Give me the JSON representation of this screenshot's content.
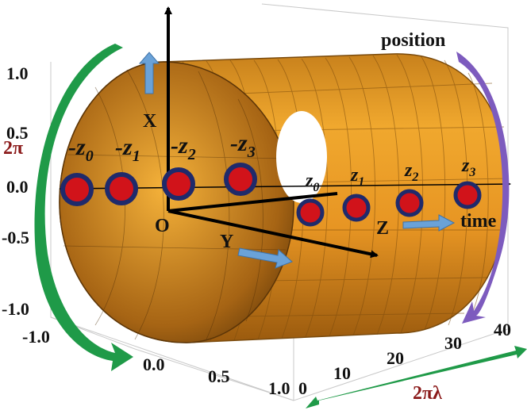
{
  "y_ticks": [
    "1.0",
    "0.5",
    "0.0",
    "-0.5",
    "-1.0"
  ],
  "front_ticks": [
    "-1.0",
    "0.0",
    "0.5",
    "1.0"
  ],
  "depth_ticks": [
    "0",
    "10",
    "20",
    "30",
    "40"
  ],
  "axes": {
    "x": "X",
    "y": "Y",
    "z": "Z",
    "origin": "O"
  },
  "labels": {
    "position": "position",
    "time": "time",
    "two_pi": "2π",
    "two_pi_lambda": "2πλ"
  },
  "left_points": [
    {
      "sign": "-",
      "sub": "0"
    },
    {
      "sign": "-",
      "sub": "1"
    },
    {
      "sign": "-",
      "sub": "2"
    },
    {
      "sign": "-",
      "sub": "3"
    }
  ],
  "right_points": [
    {
      "sub": "0"
    },
    {
      "sub": "1"
    },
    {
      "sub": "2"
    },
    {
      "sub": "3"
    }
  ],
  "point_letter": "z",
  "colors": {
    "cylinder": "#e8951f",
    "cylinder_dark": "#7a4a0c",
    "dot": "#d1131a",
    "dot_ring": "#1f2a6b",
    "arrow_blue": "#6aa2d8",
    "arrow_green": "#1f9a48",
    "arrow_purple": "#7d5bbe"
  }
}
